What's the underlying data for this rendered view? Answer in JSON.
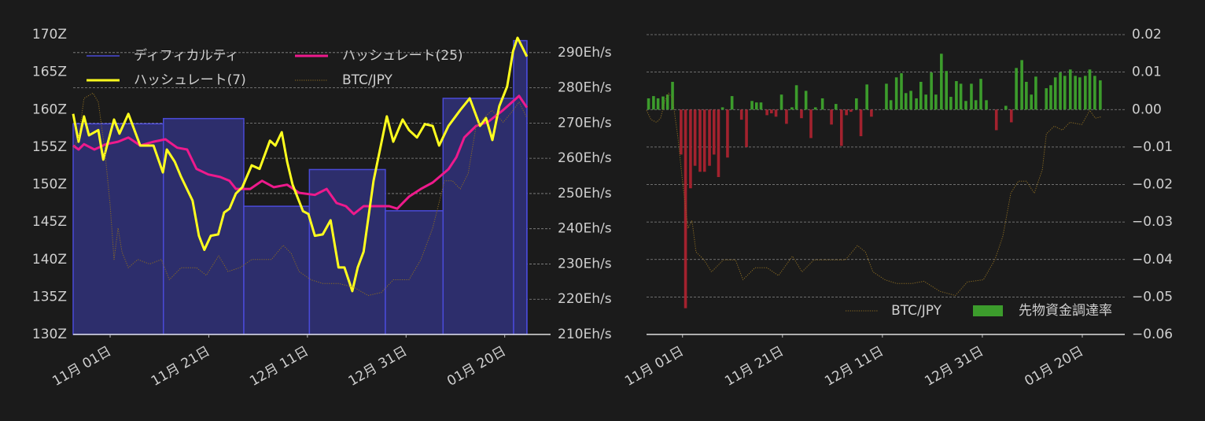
{
  "chart_data": [
    {
      "type": "line",
      "legend": "upper left",
      "legend_columns": 2,
      "grid": true,
      "grid_axis": "y2",
      "xlim": [
        -7.5,
        89.3
      ],
      "xticks": [
        {
          "value": 0,
          "label": "11月 01日"
        },
        {
          "value": 20,
          "label": "11月 21日"
        },
        {
          "value": 40,
          "label": "12月 11日"
        },
        {
          "value": 60,
          "label": "12月 31日"
        },
        {
          "value": 80,
          "label": "01月 20日"
        }
      ],
      "ylim": [
        130,
        170
      ],
      "yticks": [
        {
          "value": 130,
          "label": "130Z"
        },
        {
          "value": 135,
          "label": "135Z"
        },
        {
          "value": 140,
          "label": "140Z"
        },
        {
          "value": 145,
          "label": "145Z"
        },
        {
          "value": 150,
          "label": "150Z"
        },
        {
          "value": 155,
          "label": "155Z"
        },
        {
          "value": 160,
          "label": "160Z"
        },
        {
          "value": 165,
          "label": "165Z"
        },
        {
          "value": 170,
          "label": "170Z"
        }
      ],
      "y2lim": [
        210,
        295.1
      ],
      "y2ticks": [
        {
          "value": 210,
          "label": "210Eh/s"
        },
        {
          "value": 220,
          "label": "220Eh/s"
        },
        {
          "value": 230,
          "label": "230Eh/s"
        },
        {
          "value": 240,
          "label": "240Eh/s"
        },
        {
          "value": 250,
          "label": "250Eh/s"
        },
        {
          "value": 260,
          "label": "260Eh/s"
        },
        {
          "value": 270,
          "label": "270Eh/s"
        },
        {
          "value": 280,
          "label": "280Eh/s"
        },
        {
          "value": 290,
          "label": "290Eh/s"
        }
      ],
      "series": [
        {
          "name": "ディフィカルティ",
          "type": "step-area",
          "color": "#4a4ad8",
          "fill": "#2d2e6c",
          "x": [
            -7.5,
            10.8,
            27.1,
            40.4,
            55.8,
            67.5,
            81.8,
            84.5
          ],
          "values": [
            158.1,
            158.8,
            147.1,
            152.0,
            146.5,
            161.5,
            169.2,
            169.2
          ]
        },
        {
          "name": "ハッシュレート(25)",
          "type": "line",
          "axis": "y2",
          "color": "#ee1a8c",
          "x": [
            -7.5,
            -6.4,
            -5.3,
            -3.2,
            -0.8,
            1.6,
            3.7,
            6.1,
            8.8,
            11.2,
            13.6,
            15.6,
            17.5,
            19.9,
            22.3,
            24.2,
            25.5,
            28.4,
            30.8,
            33.2,
            35.9,
            38.3,
            41.5,
            43.9,
            45.9,
            47.8,
            49.4,
            51.4,
            54.2,
            56.6,
            58.2,
            60.6,
            63.0,
            65.4,
            68.6,
            70.2,
            71.8,
            74.2,
            76.6,
            79.7,
            82.9,
            84.5
          ],
          "values": [
            263.6,
            262.5,
            264,
            262.5,
            264,
            264.7,
            265.9,
            263.6,
            264.7,
            265.4,
            263,
            262.5,
            257,
            255.4,
            254.7,
            253.6,
            251.3,
            251.3,
            253.6,
            251.8,
            252.5,
            250.2,
            249.6,
            251.3,
            247.3,
            246.4,
            244.2,
            246.4,
            246.4,
            246.4,
            245.7,
            249.1,
            251.3,
            253.1,
            256.9,
            260.3,
            265.9,
            269.2,
            270.3,
            273.7,
            277.7,
            274.4
          ]
        },
        {
          "name": "ハッシュレート(7)",
          "type": "line",
          "axis": "y2",
          "color": "#ffff1e",
          "x": [
            -7.5,
            -6.4,
            -5.3,
            -4.3,
            -2.4,
            -1.4,
            0.8,
            1.9,
            3.7,
            6.1,
            8.8,
            10.7,
            11.5,
            13.1,
            14.4,
            16.7,
            18.0,
            19.1,
            20.4,
            21.9,
            23.1,
            24.2,
            25.5,
            26.8,
            28.7,
            30.3,
            32.4,
            33.5,
            34.8,
            35.9,
            37.0,
            39.1,
            40.2,
            41.5,
            43.1,
            44.7,
            46.3,
            47.5,
            49.1,
            50.2,
            51.4,
            53.4,
            56.1,
            57.4,
            59.3,
            60.6,
            62.2,
            63.8,
            65.4,
            66.7,
            68.6,
            71.0,
            72.9,
            75.0,
            76.2,
            77.5,
            78.9,
            80.5,
            81.7,
            82.6,
            84.5
          ],
          "values": [
            272.6,
            264.7,
            271.9,
            266.5,
            268,
            259.6,
            271,
            267,
            272.6,
            263.6,
            263.6,
            256,
            262.5,
            259,
            254.7,
            248,
            238,
            234,
            238,
            238.4,
            244.6,
            245.7,
            250,
            251.8,
            258,
            257,
            265,
            263.6,
            267.4,
            259,
            252.5,
            245,
            244.2,
            238,
            238.4,
            242.4,
            229,
            229,
            222.3,
            229,
            233.5,
            253.6,
            271.9,
            264.7,
            271,
            268,
            265.9,
            269.7,
            269.2,
            263.6,
            269.2,
            273.7,
            277,
            269.2,
            271.4,
            265.2,
            274.8,
            280.4,
            290.4,
            294.2,
            288.9
          ]
        },
        {
          "name": "BTC/JPY",
          "type": "line",
          "dash": "dotted",
          "color": "#8c6c22",
          "x": [
            -7.5,
            -6.4,
            -5.3,
            -3.5,
            -2.4,
            -1.1,
            0,
            0.8,
            1.6,
            2.4,
            3.7,
            5.6,
            8.0,
            10.4,
            12.0,
            14.4,
            17.5,
            19.5,
            22.0,
            23.9,
            26.3,
            28.7,
            30.6,
            32.7,
            35.1,
            36.7,
            38.3,
            40.7,
            43.1,
            46.3,
            49.4,
            52.3,
            55.0,
            57.4,
            60.6,
            63.0,
            65.4,
            67.8,
            69.4,
            71.0,
            72.6,
            74.2,
            75.8,
            77.4,
            79.7,
            81.7,
            82.9,
            84.5
          ],
          "values": [
            154.7,
            156.2,
            161.5,
            162.2,
            161,
            154.7,
            147.3,
            140,
            144.2,
            141,
            138.9,
            140,
            139.4,
            140,
            137.3,
            138.9,
            138.9,
            137.9,
            140.5,
            138.4,
            138.9,
            140,
            140,
            140,
            141.9,
            140.8,
            138.4,
            137.3,
            136.8,
            136.8,
            136.3,
            135.2,
            135.6,
            137.3,
            137.3,
            140,
            144.2,
            150.5,
            150.5,
            149.4,
            151.5,
            157.8,
            158.9,
            159.9,
            158.3,
            159.9,
            161,
            158.9
          ]
        }
      ]
    },
    {
      "type": "bar",
      "legend": "lower right",
      "grid": true,
      "grid_axis": "y",
      "y_axis_side": "right",
      "xlim": [
        -7.2,
        88.5
      ],
      "xticks": [
        {
          "value": 0,
          "label": "11月 01日"
        },
        {
          "value": 20,
          "label": "11月 21日"
        },
        {
          "value": 40,
          "label": "12月 11日"
        },
        {
          "value": 60,
          "label": "12月 31日"
        },
        {
          "value": 80,
          "label": "01月 20日"
        }
      ],
      "ylim": [
        -0.06,
        0.02
      ],
      "yticks": [
        {
          "value": -0.06,
          "label": "−0.06"
        },
        {
          "value": -0.05,
          "label": "−0.05"
        },
        {
          "value": -0.04,
          "label": "−0.04"
        },
        {
          "value": -0.03,
          "label": "−0.03"
        },
        {
          "value": -0.02,
          "label": "−0.02"
        },
        {
          "value": -0.01,
          "label": "−0.01"
        },
        {
          "value": 0,
          "label": "0.00"
        },
        {
          "value": 0.01,
          "label": "0.01"
        },
        {
          "value": 0.02,
          "label": "0.02"
        }
      ],
      "series": [
        {
          "name": "BTC/JPY",
          "type": "line",
          "dash": "dotted",
          "color": "#8c6c22",
          "x": [
            -7.2,
            -6.3,
            -5.2,
            -4.4,
            -3.5,
            -2.8,
            -2.0,
            -0.9,
            0,
            1.1,
            1.9,
            2.7,
            4.3,
            5.8,
            8.2,
            10.6,
            12.1,
            14.5,
            16.9,
            19.2,
            22.0,
            23.9,
            26.3,
            28.7,
            30.2,
            32.6,
            35.0,
            36.6,
            38.1,
            40.5,
            42.8,
            46.0,
            48.3,
            51.5,
            54.6,
            57.0,
            60.2,
            62.5,
            64.1,
            65.7,
            67.2,
            68.8,
            70.4,
            72.0,
            72.8,
            74.4,
            76.0,
            77.5,
            79.9,
            81.5,
            82.6,
            83.9
          ],
          "values": [
            -0.0002,
            -0.0027,
            -0.0034,
            -0.0023,
            0.0023,
            0.0044,
            0.003,
            -0.0076,
            -0.0191,
            -0.0317,
            -0.0296,
            -0.038,
            -0.0401,
            -0.0433,
            -0.0401,
            -0.0401,
            -0.0454,
            -0.0422,
            -0.0422,
            -0.0443,
            -0.0391,
            -0.0433,
            -0.0401,
            -0.0401,
            -0.0401,
            -0.0401,
            -0.0363,
            -0.038,
            -0.0433,
            -0.0454,
            -0.0464,
            -0.0464,
            -0.0458,
            -0.0485,
            -0.0496,
            -0.046,
            -0.0454,
            -0.0401,
            -0.0338,
            -0.0223,
            -0.0191,
            -0.0191,
            -0.0223,
            -0.016,
            -0.0065,
            -0.0044,
            -0.0055,
            -0.0034,
            -0.004,
            -0.0002,
            -0.0023,
            -0.0019
          ]
        },
        {
          "name": "先物資金調達率",
          "type": "bar",
          "color": "#3c9c2c",
          "negative_color": "#a3222e",
          "x": [
            -6.8,
            -5.8,
            -4.9,
            -3.9,
            -3.0,
            -2.0,
            -0.3,
            0.6,
            1.6,
            2.5,
            3.5,
            4.4,
            5.4,
            6.3,
            7.2,
            8.0,
            9.0,
            9.9,
            11.8,
            12.8,
            13.9,
            14.8,
            15.7,
            16.9,
            17.8,
            18.7,
            19.8,
            20.8,
            21.9,
            22.8,
            23.8,
            24.7,
            25.7,
            26.6,
            28.0,
            29.8,
            30.7,
            31.8,
            32.8,
            33.7,
            34.8,
            35.7,
            36.9,
            37.8,
            40.8,
            41.7,
            42.8,
            43.8,
            44.7,
            45.7,
            46.8,
            47.7,
            48.7,
            49.8,
            50.7,
            51.8,
            52.8,
            53.7,
            54.8,
            55.7,
            56.7,
            57.8,
            58.7,
            59.7,
            60.8,
            62.8,
            64.7,
            65.8,
            66.8,
            67.9,
            68.8,
            69.8,
            70.7,
            72.8,
            73.7,
            74.6,
            75.6,
            76.5,
            77.6,
            78.6,
            79.5,
            80.6,
            81.5,
            82.5,
            83.6
          ],
          "values": [
            0.003,
            0.0036,
            0.003,
            0.0035,
            0.004,
            0.0074,
            -0.012,
            -0.053,
            -0.021,
            -0.015,
            -0.0166,
            -0.0166,
            -0.015,
            -0.012,
            -0.018,
            0.0006,
            -0.0128,
            0.0036,
            -0.0027,
            -0.01,
            0.0023,
            0.0019,
            0.0019,
            -0.0015,
            -0.001,
            -0.0019,
            0.004,
            -0.0038,
            0.0006,
            0.0065,
            -0.0023,
            0.005,
            -0.0076,
            0.0006,
            0.003,
            -0.004,
            0.0015,
            -0.0097,
            -0.0015,
            -0.0006,
            0.003,
            -0.0071,
            0.0067,
            -0.0019,
            0.0069,
            0.0025,
            0.0086,
            0.0097,
            0.0044,
            0.005,
            0.003,
            0.0074,
            0.004,
            0.0099,
            0.004,
            0.0149,
            0.0103,
            0.0034,
            0.0076,
            0.0069,
            0.0023,
            0.0069,
            0.0025,
            0.0082,
            0.0025,
            -0.0055,
            0.001,
            -0.0034,
            0.0111,
            0.0132,
            0.0074,
            0.004,
            0.0088,
            0.0057,
            0.0065,
            0.0086,
            0.0099,
            0.009,
            0.0107,
            0.009,
            0.0086,
            0.009,
            0.0107,
            0.009,
            0.0078
          ]
        }
      ]
    }
  ]
}
